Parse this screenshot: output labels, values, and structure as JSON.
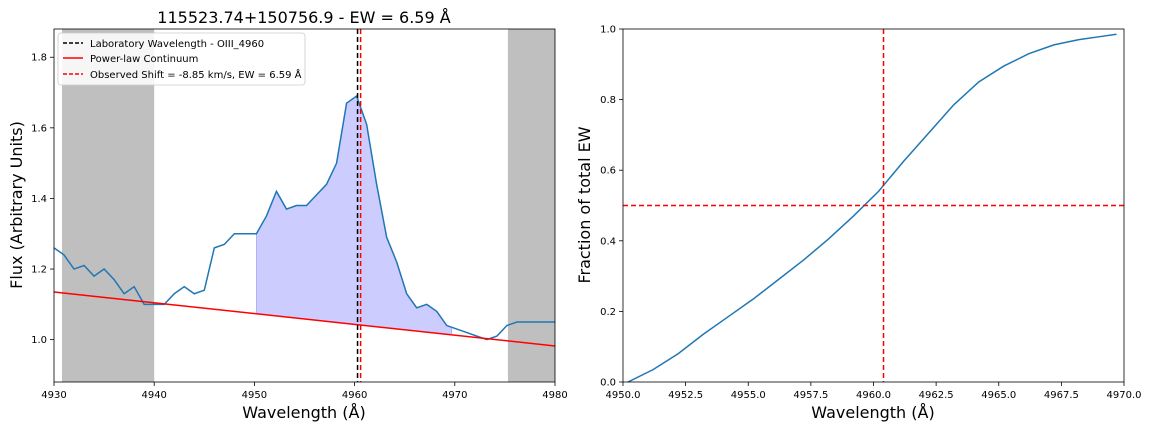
{
  "chart_data": [
    {
      "type": "line",
      "title": "115523.74+150756.9 - EW = 6.59 Å",
      "xlabel": "Wavelength (Å)",
      "ylabel": "Flux (Arbitrary Units)",
      "xlim": [
        4930,
        4980
      ],
      "ylim": [
        0.88,
        1.88
      ],
      "xticks": [
        4930,
        4940,
        4950,
        4960,
        4970,
        4980
      ],
      "yticks": [
        1.0,
        1.2,
        1.4,
        1.6,
        1.8
      ],
      "xtick_labels": [
        "4930",
        "4940",
        "4950",
        "4960",
        "4970",
        "4980"
      ],
      "ytick_labels": [
        "1.0",
        "1.2",
        "1.4",
        "1.6",
        "1.8"
      ],
      "grid": false,
      "legend_position": "upper-left",
      "shaded_regions": [
        {
          "x0": 4930.8,
          "x1": 4940.0,
          "color": "#bfbfbf"
        },
        {
          "x0": 4975.3,
          "x1": 4980.0,
          "color": "#bfbfbf"
        }
      ],
      "ew_fill": {
        "x_start": 4950.2,
        "x_end": 4969.7,
        "color": "#ccccff"
      },
      "series": [
        {
          "name": "",
          "color": "#1f77b4",
          "x": [
            4930,
            4931,
            4932,
            4933,
            4934,
            4935,
            4936,
            4937,
            4938,
            4939,
            4940,
            4941,
            4942,
            4943,
            4944,
            4945,
            4946,
            4947,
            4948,
            4949,
            4950.2,
            4951.2,
            4952.2,
            4953.2,
            4954.2,
            4955.2,
            4956.2,
            4957.2,
            4958.2,
            4959.2,
            4960.2,
            4961.2,
            4962.2,
            4963.2,
            4964.2,
            4965.2,
            4966.2,
            4967.2,
            4968.2,
            4969.2,
            4970.2,
            4971.2,
            4972.2,
            4973.2,
            4974.2,
            4975.2,
            4976.2,
            4977.2,
            4978.2,
            4979.2,
            4980
          ],
          "y": [
            1.26,
            1.24,
            1.2,
            1.21,
            1.18,
            1.2,
            1.17,
            1.13,
            1.15,
            1.1,
            1.1,
            1.1,
            1.13,
            1.15,
            1.13,
            1.14,
            1.26,
            1.27,
            1.3,
            1.3,
            1.3,
            1.35,
            1.42,
            1.37,
            1.38,
            1.38,
            1.41,
            1.44,
            1.5,
            1.67,
            1.69,
            1.61,
            1.44,
            1.29,
            1.22,
            1.13,
            1.09,
            1.1,
            1.08,
            1.04,
            1.03,
            1.02,
            1.01,
            1.0,
            1.01,
            1.04,
            1.05,
            1.05,
            1.05,
            1.05,
            1.05
          ]
        },
        {
          "name": "Power-law Continuum",
          "color": "#ff0000",
          "x": [
            4930,
            4980
          ],
          "y": [
            1.135,
            0.982
          ]
        }
      ],
      "vlines": [
        {
          "name": "Laboratory Wavelength - OIII_4960",
          "x": 4960.295,
          "color": "#000000",
          "style": "dashed"
        },
        {
          "name": "Observed Shift = -8.85 km/s, EW = 6.59 Å",
          "x": 4960.6,
          "color": "#ff0000",
          "style": "dashed"
        }
      ],
      "legend": [
        {
          "label": "Laboratory Wavelength - OIII_4960",
          "color": "#000000",
          "style": "dashed"
        },
        {
          "label": "Power-law Continuum",
          "color": "#ff0000",
          "style": "solid"
        },
        {
          "label": "Observed Shift = -8.85 km/s, EW = 6.59 Å",
          "color": "#ff0000",
          "style": "dashed"
        }
      ]
    },
    {
      "type": "line",
      "title": "",
      "xlabel": "Wavelength (Å)",
      "ylabel": "Fraction of total EW",
      "xlim": [
        4950.0,
        4970.0
      ],
      "ylim": [
        0.0,
        1.0
      ],
      "xticks": [
        4950.0,
        4952.5,
        4955.0,
        4957.5,
        4960.0,
        4962.5,
        4965.0,
        4967.5,
        4970.0
      ],
      "yticks": [
        0.0,
        0.2,
        0.4,
        0.6,
        0.8,
        1.0
      ],
      "xtick_labels": [
        "4950.0",
        "4952.5",
        "4955.0",
        "4957.5",
        "4960.0",
        "4962.5",
        "4965.0",
        "4967.5",
        "4970.0"
      ],
      "ytick_labels": [
        "0.0",
        "0.2",
        "0.4",
        "0.6",
        "0.8",
        "1.0"
      ],
      "grid": false,
      "series": [
        {
          "name": "",
          "color": "#1f77b4",
          "x": [
            4950.2,
            4951.2,
            4952.2,
            4953.2,
            4954.2,
            4955.2,
            4956.2,
            4957.2,
            4958.2,
            4959.2,
            4960.2,
            4961.2,
            4962.2,
            4963.2,
            4964.2,
            4965.2,
            4966.2,
            4967.2,
            4968.2,
            4969.2,
            4969.7
          ],
          "y": [
            0.0,
            0.035,
            0.08,
            0.135,
            0.185,
            0.235,
            0.29,
            0.345,
            0.405,
            0.47,
            0.54,
            0.625,
            0.705,
            0.785,
            0.85,
            0.895,
            0.93,
            0.955,
            0.97,
            0.98,
            0.985
          ]
        }
      ],
      "hline": {
        "y": 0.5,
        "color": "#ff0000",
        "style": "dashed"
      },
      "vline": {
        "x": 4960.4,
        "color": "#ff0000",
        "style": "dashed"
      }
    }
  ]
}
